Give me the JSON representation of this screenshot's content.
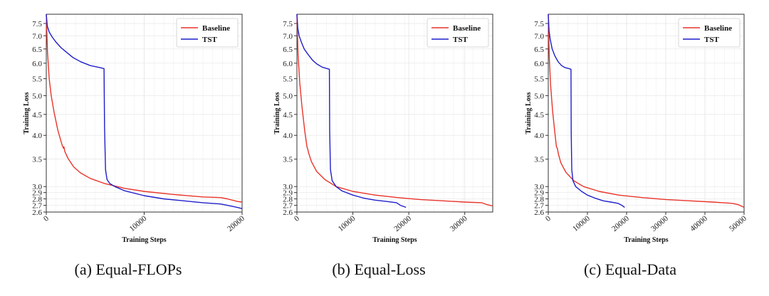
{
  "captions": [
    "(a) Equal-FLOPs",
    "(b) Equal-Loss",
    "(c) Equal-Data"
  ],
  "colors": {
    "Baseline": "#e8342a",
    "TST": "#1f1fcc",
    "grid": "#e6e6e6"
  },
  "chart_data": [
    {
      "type": "line",
      "title": "",
      "xlabel": "Training Steps",
      "ylabel": "Training Loss",
      "yscale": "log",
      "xlim": [
        0,
        20000
      ],
      "ylim": [
        2.6,
        7.9
      ],
      "xticks": [
        0,
        10000,
        20000
      ],
      "xtick_labels": [
        "0",
        "10000",
        "20000"
      ],
      "yticks": [
        2.6,
        2.7,
        2.8,
        2.9,
        3.0,
        3.5,
        4.0,
        4.5,
        5.0,
        5.5,
        6.0,
        6.5,
        7.0,
        7.5
      ],
      "ytick_labels": [
        "2.6",
        "2.7",
        "2.8",
        "2.9",
        "3.0",
        "3.5",
        "4.0",
        "4.5",
        "5.0",
        "5.5",
        "6.0",
        "6.5",
        "7.0",
        "7.5"
      ],
      "grid": true,
      "legend": "top-right",
      "series": [
        {
          "name": "Baseline",
          "x": [
            0,
            120,
            300,
            500,
            800,
            1200,
            1600,
            1750,
            1800,
            1900,
            2200,
            2800,
            3500,
            4500,
            6000,
            8000,
            10000,
            13000,
            16000,
            17800,
            18500,
            19500,
            20000
          ],
          "y": [
            7.9,
            6.4,
            5.5,
            5.0,
            4.55,
            4.1,
            3.8,
            3.72,
            3.75,
            3.65,
            3.52,
            3.35,
            3.24,
            3.14,
            3.05,
            2.97,
            2.92,
            2.87,
            2.83,
            2.82,
            2.8,
            2.76,
            2.75
          ]
        },
        {
          "name": "TST",
          "x": [
            0,
            100,
            300,
            600,
            1000,
            1500,
            2000,
            2700,
            3500,
            4500,
            5500,
            5900,
            5950,
            6050,
            6200,
            6500,
            7000,
            8000,
            10000,
            12000,
            14000,
            16000,
            17800,
            18500,
            19500,
            20000
          ],
          "y": [
            7.9,
            7.4,
            7.15,
            6.95,
            6.75,
            6.55,
            6.4,
            6.2,
            6.05,
            5.92,
            5.85,
            5.82,
            4.2,
            3.3,
            3.12,
            3.05,
            3.0,
            2.93,
            2.85,
            2.8,
            2.77,
            2.74,
            2.72,
            2.7,
            2.67,
            2.65
          ]
        }
      ]
    },
    {
      "type": "line",
      "title": "",
      "xlabel": "Training Steps",
      "ylabel": "Training Loss",
      "yscale": "log",
      "xlim": [
        0,
        35000
      ],
      "ylim": [
        2.6,
        7.9
      ],
      "xticks": [
        0,
        10000,
        20000,
        30000
      ],
      "xtick_labels": [
        "0",
        "10000",
        "20000",
        "30000"
      ],
      "yticks": [
        2.6,
        2.7,
        2.8,
        2.9,
        3.0,
        3.5,
        4.0,
        4.5,
        5.0,
        5.5,
        6.0,
        6.5,
        7.0,
        7.5
      ],
      "ytick_labels": [
        "2.6",
        "2.7",
        "2.8",
        "2.9",
        "3.0",
        "3.5",
        "4.0",
        "4.5",
        "5.0",
        "5.5",
        "6.0",
        "6.5",
        "7.0",
        "7.5"
      ],
      "grid": true,
      "legend": "top-right",
      "series": [
        {
          "name": "Baseline",
          "x": [
            0,
            200,
            500,
            900,
            1400,
            1800,
            1900,
            2100,
            2600,
            3500,
            5000,
            7000,
            10000,
            14000,
            18000,
            22000,
            26000,
            30000,
            33000,
            34000,
            35000
          ],
          "y": [
            7.9,
            6.3,
            5.4,
            4.7,
            4.1,
            3.75,
            3.72,
            3.62,
            3.45,
            3.27,
            3.12,
            3.0,
            2.92,
            2.86,
            2.82,
            2.79,
            2.77,
            2.75,
            2.74,
            2.71,
            2.69
          ]
        },
        {
          "name": "TST",
          "x": [
            0,
            150,
            400,
            800,
            1300,
            2000,
            2800,
            3600,
            4500,
            5400,
            5800,
            5850,
            6000,
            6300,
            7000,
            8000,
            10000,
            12000,
            14000,
            16000,
            17800,
            18500,
            19500
          ],
          "y": [
            7.9,
            7.3,
            7.0,
            6.75,
            6.5,
            6.3,
            6.1,
            5.97,
            5.87,
            5.82,
            5.8,
            4.1,
            3.3,
            3.1,
            3.0,
            2.93,
            2.86,
            2.81,
            2.78,
            2.76,
            2.74,
            2.7,
            2.67
          ]
        }
      ]
    },
    {
      "type": "line",
      "title": "",
      "xlabel": "Training Steps",
      "ylabel": "Training Loss",
      "yscale": "log",
      "xlim": [
        0,
        50000
      ],
      "ylim": [
        2.6,
        7.9
      ],
      "xticks": [
        0,
        10000,
        20000,
        30000,
        40000,
        50000
      ],
      "xtick_labels": [
        "0",
        "10000",
        "20000",
        "30000",
        "40000",
        "50000"
      ],
      "yticks": [
        2.6,
        2.7,
        2.8,
        2.9,
        3.0,
        3.5,
        4.0,
        4.5,
        5.0,
        5.5,
        6.0,
        6.5,
        7.0,
        7.5
      ],
      "ytick_labels": [
        "2.6",
        "2.7",
        "2.8",
        "2.9",
        "3.0",
        "3.5",
        "4.0",
        "4.5",
        "5.0",
        "5.5",
        "6.0",
        "6.5",
        "7.0",
        "7.5"
      ],
      "grid": true,
      "legend": "top-right",
      "series": [
        {
          "name": "Baseline",
          "x": [
            0,
            250,
            600,
            1100,
            1700,
            2100,
            2300,
            2600,
            3200,
            4500,
            6500,
            9000,
            13000,
            18000,
            24000,
            30000,
            36000,
            42000,
            47000,
            48500,
            50000
          ],
          "y": [
            7.9,
            6.2,
            5.3,
            4.6,
            4.05,
            3.75,
            3.72,
            3.6,
            3.43,
            3.25,
            3.1,
            3.0,
            2.92,
            2.86,
            2.82,
            2.79,
            2.77,
            2.75,
            2.73,
            2.71,
            2.67
          ]
        },
        {
          "name": "TST",
          "x": [
            0,
            200,
            500,
            1000,
            1700,
            2500,
            3400,
            4300,
            5300,
            5800,
            5850,
            6000,
            6300,
            7000,
            8500,
            10000,
            12000,
            14000,
            16000,
            17800,
            18800,
            19500
          ],
          "y": [
            7.9,
            7.2,
            6.85,
            6.5,
            6.25,
            6.05,
            5.92,
            5.85,
            5.82,
            5.8,
            4.1,
            3.3,
            3.1,
            3.0,
            2.92,
            2.86,
            2.81,
            2.77,
            2.75,
            2.73,
            2.7,
            2.67
          ]
        }
      ]
    }
  ]
}
